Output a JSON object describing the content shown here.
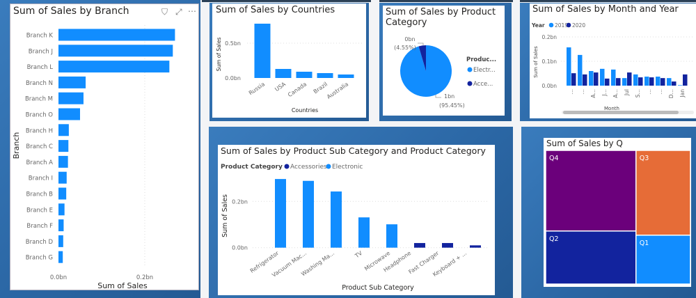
{
  "colors": {
    "electronic": "#118DFF",
    "accessories": "#12239E",
    "q4": "#6B007B",
    "q3": "#E66C37",
    "q2": "#12239E",
    "q1": "#118DFF",
    "panel": "#2B67A5"
  },
  "branch_visual": {
    "icons": [
      "filter-icon",
      "focus-mode-icon",
      "more-options-icon"
    ],
    "filter_glyph": "⛉",
    "expand_glyph": "⤢",
    "more_glyph": "⋯"
  },
  "chart_data": [
    {
      "id": "branch",
      "type": "bar",
      "orientation": "horizontal",
      "title": "Sum of Sales by Branch",
      "xlabel": "Sum of Sales",
      "ylabel": "Branch",
      "categories": [
        "Branch K",
        "Branch J",
        "Branch L",
        "Branch N",
        "Branch M",
        "Branch O",
        "Branch H",
        "Branch C",
        "Branch A",
        "Branch I",
        "Branch B",
        "Branch E",
        "Branch F",
        "Branch D",
        "Branch G"
      ],
      "values": [
        0.27,
        0.265,
        0.257,
        0.063,
        0.058,
        0.05,
        0.024,
        0.023,
        0.022,
        0.019,
        0.018,
        0.014,
        0.012,
        0.011,
        0.01
      ],
      "unit": "bn",
      "xticks": [
        "0.0bn",
        "0.2bn"
      ],
      "xlim": [
        0,
        0.28
      ],
      "grid": true
    },
    {
      "id": "countries",
      "type": "bar",
      "title": "Sum of Sales by Countries",
      "xlabel": "Countries",
      "ylabel": "Sum of Sales",
      "categories": [
        "Russia",
        "USA",
        "Canada",
        "Brazil",
        "Australia"
      ],
      "values": [
        0.78,
        0.13,
        0.09,
        0.07,
        0.05
      ],
      "unit": "bn",
      "yticks": [
        "0.0bn",
        "0.5bn"
      ],
      "grid": true
    },
    {
      "id": "category",
      "type": "pie",
      "title": "Sum of Sales by Product Category",
      "legend_title": "Produc...",
      "series": [
        {
          "name": "Electr...",
          "value": 95.45,
          "label": "1bn",
          "pct": "(95.45%)"
        },
        {
          "name": "Acce...",
          "value": 4.55,
          "label": "0bn",
          "pct": "(4.55%)"
        }
      ]
    },
    {
      "id": "month",
      "type": "bar",
      "title": "Sum of Sales by Month and Year",
      "legend_title": "Year",
      "xlabel": "Month",
      "ylabel": "Sum of Sales",
      "categories": [
        "…",
        "…",
        "A…",
        "J…",
        "A…",
        "Jul",
        "S…",
        "…",
        "…",
        "D…",
        "Jan"
      ],
      "series": [
        {
          "name": "2019",
          "values": [
            0.157,
            0.126,
            0.06,
            0.069,
            0.066,
            0.031,
            0.046,
            0.037,
            0.037,
            0.031,
            0.002
          ]
        },
        {
          "name": "2020",
          "values": [
            0.051,
            0.046,
            0.054,
            0.029,
            0.031,
            0.054,
            0.034,
            0.034,
            0.031,
            0.017,
            0.046
          ]
        }
      ],
      "unit": "bn",
      "yticks": [
        "0.0bn",
        "0.1bn",
        "0.2bn"
      ],
      "grid": true
    },
    {
      "id": "subcategory",
      "type": "bar",
      "title": "Sum of Sales by Product Sub Category and Product Category",
      "legend_title": "Product Category",
      "legend": [
        "Accessories",
        "Electronic"
      ],
      "xlabel": "Product Sub Category",
      "ylabel": "Sum of Sales",
      "categories": [
        "Refrigerator",
        "Vacuum Mac...",
        "Washing Ma...",
        "TV",
        "Microwave",
        "Headphone",
        "Fast Charger",
        "Keyboard + ..."
      ],
      "values": [
        0.297,
        0.289,
        0.243,
        0.131,
        0.101,
        0.02,
        0.02,
        0.01
      ],
      "category_of": [
        "Electronic",
        "Electronic",
        "Electronic",
        "Electronic",
        "Electronic",
        "Accessories",
        "Accessories",
        "Accessories"
      ],
      "unit": "bn",
      "yticks": [
        "0.0bn",
        "0.2bn"
      ],
      "grid": true
    },
    {
      "id": "quarter",
      "type": "treemap",
      "title": "Sum of Sales by Q",
      "categories": [
        "Q4",
        "Q2",
        "Q3",
        "Q1"
      ],
      "values": [
        0.41,
        0.27,
        0.26,
        0.15
      ]
    }
  ]
}
